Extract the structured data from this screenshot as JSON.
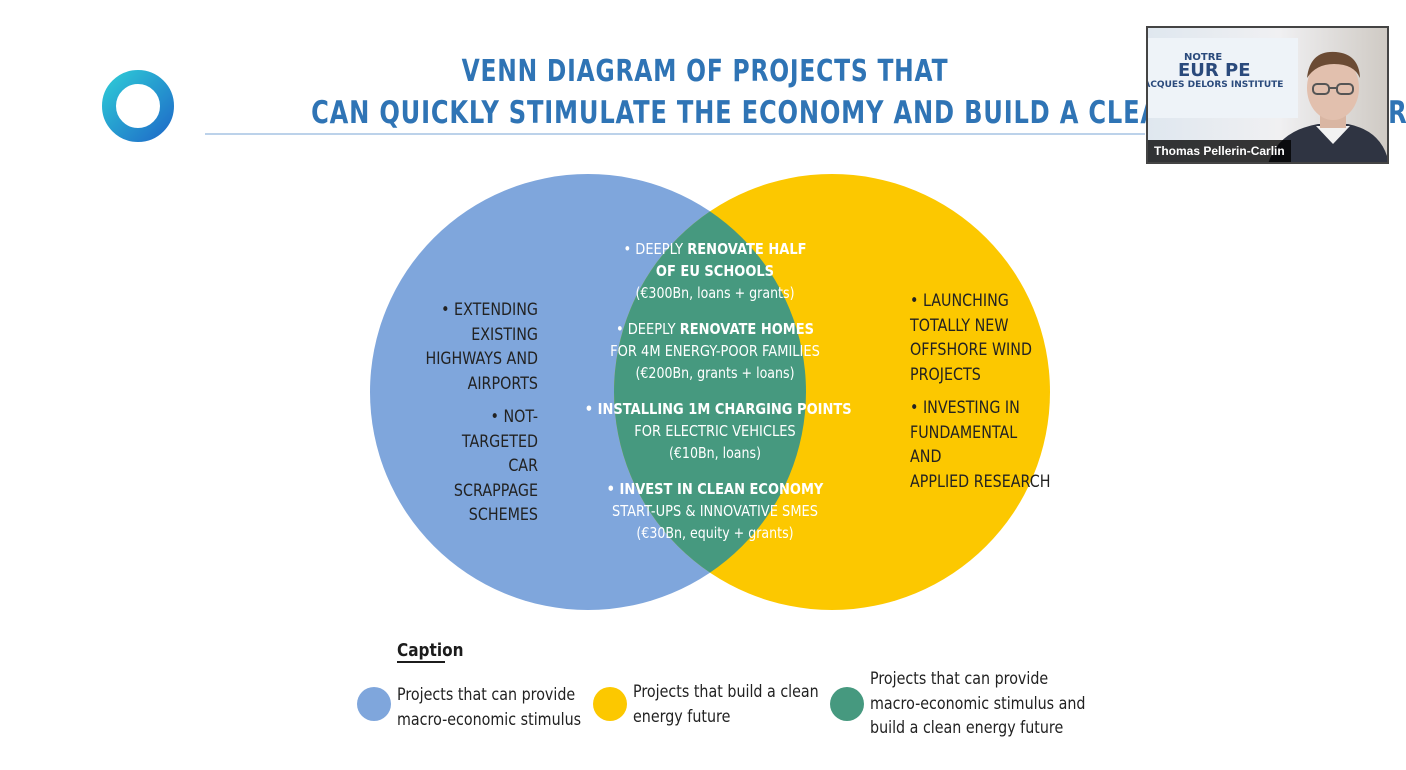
{
  "title": {
    "line1": "VENN DIAGRAM OF PROJECTS THAT",
    "line2": "CAN QUICKLY STIMULATE THE ECONOMY AND BUILD A CLEAN ENERGY FUTUR"
  },
  "colors": {
    "title": "#2f74b5",
    "stimulus_circle": "#7fa6dc",
    "clean_circle": "#fcc800",
    "overlap": "#46997f"
  },
  "venn": {
    "left": [
      {
        "lines": [
          "• EXTENDING",
          "EXISTING",
          "HIGHWAYS AND",
          "AIRPORTS"
        ]
      },
      {
        "lines": [
          "• NOT-TARGETED",
          "CAR SCRAPPAGE",
          "SCHEMES"
        ]
      }
    ],
    "right": [
      {
        "lines": [
          "• LAUNCHING",
          "TOTALLY NEW",
          "OFFSHORE WIND",
          "PROJECTS"
        ]
      },
      {
        "lines": [
          "• INVESTING IN",
          "FUNDAMENTAL AND",
          "APPLIED RESEARCH"
        ]
      }
    ],
    "center": [
      {
        "pre": "• DEEPLY ",
        "bold": "RENOVATE HALF",
        "bold2": "OF EU SCHOOLS",
        "amount": "(€300Bn, loans + grants)"
      },
      {
        "pre": "• DEEPLY ",
        "bold": "RENOVATE HOMES",
        "line2": "FOR 4M ENERGY-POOR FAMILIES",
        "amount": "(€200Bn, grants + loans)"
      },
      {
        "bold": "• INSTALLING 1M CHARGING POINTS",
        "line2": "FOR ELECTRIC VEHICLES",
        "amount": "(€10Bn, loans)"
      },
      {
        "bold": "• INVEST IN CLEAN ECONOMY",
        "line2": "START-UPS & INNOVATIVE SMES",
        "amount": "(€30Bn, equity + grants)"
      }
    ]
  },
  "caption": {
    "heading": "Caption",
    "items": [
      {
        "lines": [
          "Projects that can provide",
          "macro-economic stimulus"
        ]
      },
      {
        "lines": [
          "Projects that build a clean",
          "energy future"
        ]
      },
      {
        "lines": [
          "Projects that can provide",
          "macro-economic stimulus and",
          "build a clean energy future"
        ]
      }
    ]
  },
  "webcam": {
    "name": "Thomas Pellerin-Carlin",
    "banner_line1": "NOTRE",
    "banner_line2": "EUR  PE",
    "banner_line3": "JACQUES DELORS INSTITUTE"
  }
}
